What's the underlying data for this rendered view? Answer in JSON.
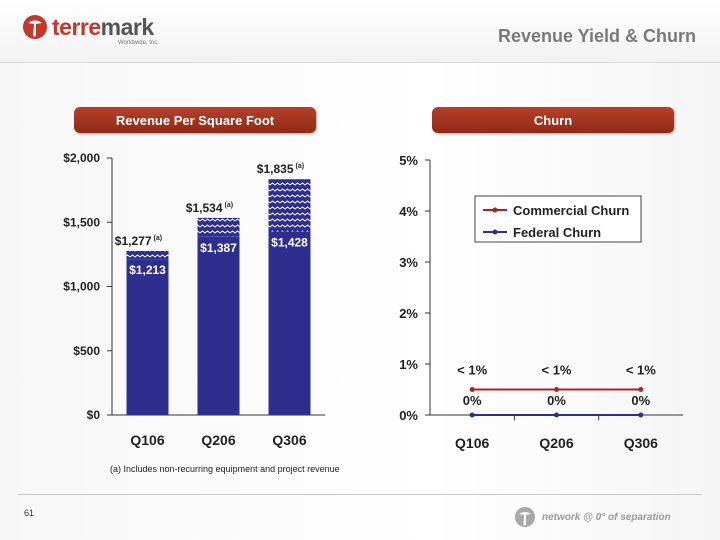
{
  "header": {
    "logo_text_accent": "terre",
    "logo_text_rest": "mark",
    "logo_sub": "Worldwide, Inc.",
    "title": "Revenue Yield & Churn"
  },
  "panels": {
    "left_title": "Revenue Per Square Foot",
    "right_title": "Churn"
  },
  "footnote": "(a) Includes non-recurring equipment and project revenue",
  "footer": {
    "page_number": "61",
    "tagline": "network @ 0° of separation"
  },
  "colors": {
    "bar": "#2e2e8f",
    "accent": "#a33520",
    "commercial": "#b22222",
    "federal": "#2e2e8f"
  },
  "chart_data": [
    {
      "type": "bar",
      "categories": [
        "Q106",
        "Q206",
        "Q306"
      ],
      "series": [
        {
          "values": [
            1213,
            1387,
            1428
          ],
          "labels": [
            "$1,213",
            "$1,387",
            "$1,428"
          ]
        },
        {
          "values": [
            1277,
            1534,
            1835
          ],
          "labels": [
            "$1,277",
            "$1,534",
            "$1,835"
          ],
          "superscript": "(a)"
        }
      ],
      "ylim": [
        0,
        2000
      ],
      "yticks": [
        0,
        500,
        1000,
        1500,
        2000
      ],
      "ytick_labels": [
        "$0",
        "$500",
        "$1,000",
        "$1,500",
        "$2,000"
      ],
      "title": "Revenue Per Square Foot",
      "xlabel": "",
      "ylabel": ""
    },
    {
      "type": "line",
      "categories": [
        "Q106",
        "Q206",
        "Q306"
      ],
      "series": [
        {
          "name": "Commercial Churn",
          "values": [
            0.5,
            0.5,
            0.5
          ],
          "labels": [
            "< 1%",
            "< 1%",
            "< 1%"
          ]
        },
        {
          "name": "Federal Churn",
          "values": [
            0,
            0,
            0
          ],
          "labels": [
            "0%",
            "0%",
            "0%"
          ]
        }
      ],
      "ylim": [
        0,
        5
      ],
      "yticks": [
        0,
        1,
        2,
        3,
        4,
        5
      ],
      "ytick_labels": [
        "0%",
        "1%",
        "2%",
        "3%",
        "4%",
        "5%"
      ],
      "legend": "top-right",
      "title": "Churn",
      "xlabel": "",
      "ylabel": ""
    }
  ]
}
